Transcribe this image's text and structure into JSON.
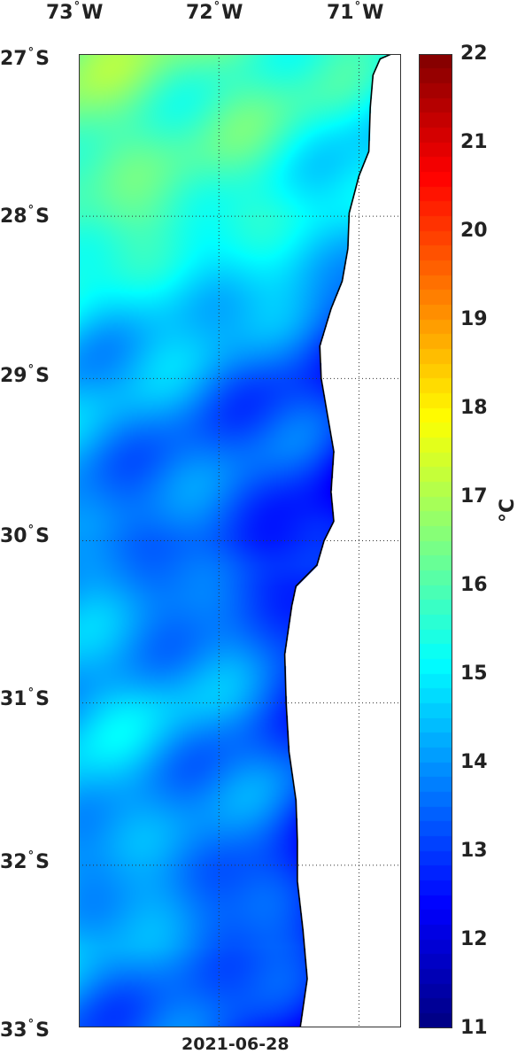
{
  "chart_data": {
    "type": "heatmap",
    "title": "",
    "date_label": "2021-06-28",
    "x_ticks": [
      {
        "value": -73,
        "deg": "73",
        "hem": "W"
      },
      {
        "value": -72,
        "deg": "72",
        "hem": "W"
      },
      {
        "value": -71,
        "deg": "71",
        "hem": "W"
      }
    ],
    "y_ticks": [
      {
        "value": -27,
        "deg": "27",
        "hem": "S"
      },
      {
        "value": -28,
        "deg": "28",
        "hem": "S"
      },
      {
        "value": -29,
        "deg": "29",
        "hem": "S"
      },
      {
        "value": -30,
        "deg": "30",
        "hem": "S"
      },
      {
        "value": -31,
        "deg": "31",
        "hem": "S"
      },
      {
        "value": -32,
        "deg": "32",
        "hem": "S"
      },
      {
        "value": -33,
        "deg": "33",
        "hem": "S"
      }
    ],
    "xlim": [
      -73.0,
      -70.7
    ],
    "ylim": [
      -33,
      -27
    ],
    "colorbar": {
      "label": "°C",
      "ticks": [
        "22",
        "21",
        "20",
        "19",
        "18",
        "17",
        "16",
        "15",
        "14",
        "13",
        "12",
        "11"
      ],
      "range": [
        11,
        22
      ],
      "colormap": "jet"
    },
    "grid": true,
    "land_color": "#ffffff",
    "coastline_color": "#000000",
    "coastline": [
      [
        -70.77,
        -27.0
      ],
      [
        -70.85,
        -27.03
      ],
      [
        -70.9,
        -27.13
      ],
      [
        -70.92,
        -27.33
      ],
      [
        -70.93,
        -27.6
      ],
      [
        -71.0,
        -27.75
      ],
      [
        -71.07,
        -27.98
      ],
      [
        -71.08,
        -28.2
      ],
      [
        -71.12,
        -28.4
      ],
      [
        -71.2,
        -28.57
      ],
      [
        -71.28,
        -28.8
      ],
      [
        -71.27,
        -29.0
      ],
      [
        -71.23,
        -29.2
      ],
      [
        -71.18,
        -29.45
      ],
      [
        -71.2,
        -29.7
      ],
      [
        -71.18,
        -29.88
      ],
      [
        -71.25,
        -30.0
      ],
      [
        -71.3,
        -30.15
      ],
      [
        -71.45,
        -30.28
      ],
      [
        -71.48,
        -30.4
      ],
      [
        -71.53,
        -30.7
      ],
      [
        -71.52,
        -31.0
      ],
      [
        -71.5,
        -31.3
      ],
      [
        -71.45,
        -31.6
      ],
      [
        -71.44,
        -31.85
      ],
      [
        -71.44,
        -32.1
      ],
      [
        -71.4,
        -32.4
      ],
      [
        -71.37,
        -32.7
      ],
      [
        -71.42,
        -33.0
      ]
    ],
    "sst_anchors": [
      {
        "lat": -27.0,
        "t": 16.4
      },
      {
        "lat": -27.5,
        "t": 16.1
      },
      {
        "lat": -28.0,
        "t": 15.9
      },
      {
        "lat": -28.5,
        "t": 15.0
      },
      {
        "lat": -29.0,
        "t": 14.2
      },
      {
        "lat": -29.5,
        "t": 13.9
      },
      {
        "lat": -30.0,
        "t": 13.7
      },
      {
        "lat": -30.5,
        "t": 14.2
      },
      {
        "lat": -31.0,
        "t": 14.6
      },
      {
        "lat": -31.5,
        "t": 14.4
      },
      {
        "lat": -32.0,
        "t": 14.1
      },
      {
        "lat": -32.5,
        "t": 14.2
      },
      {
        "lat": -33.0,
        "t": 13.6
      }
    ],
    "coastal_cooling_degC": 1.1
  }
}
